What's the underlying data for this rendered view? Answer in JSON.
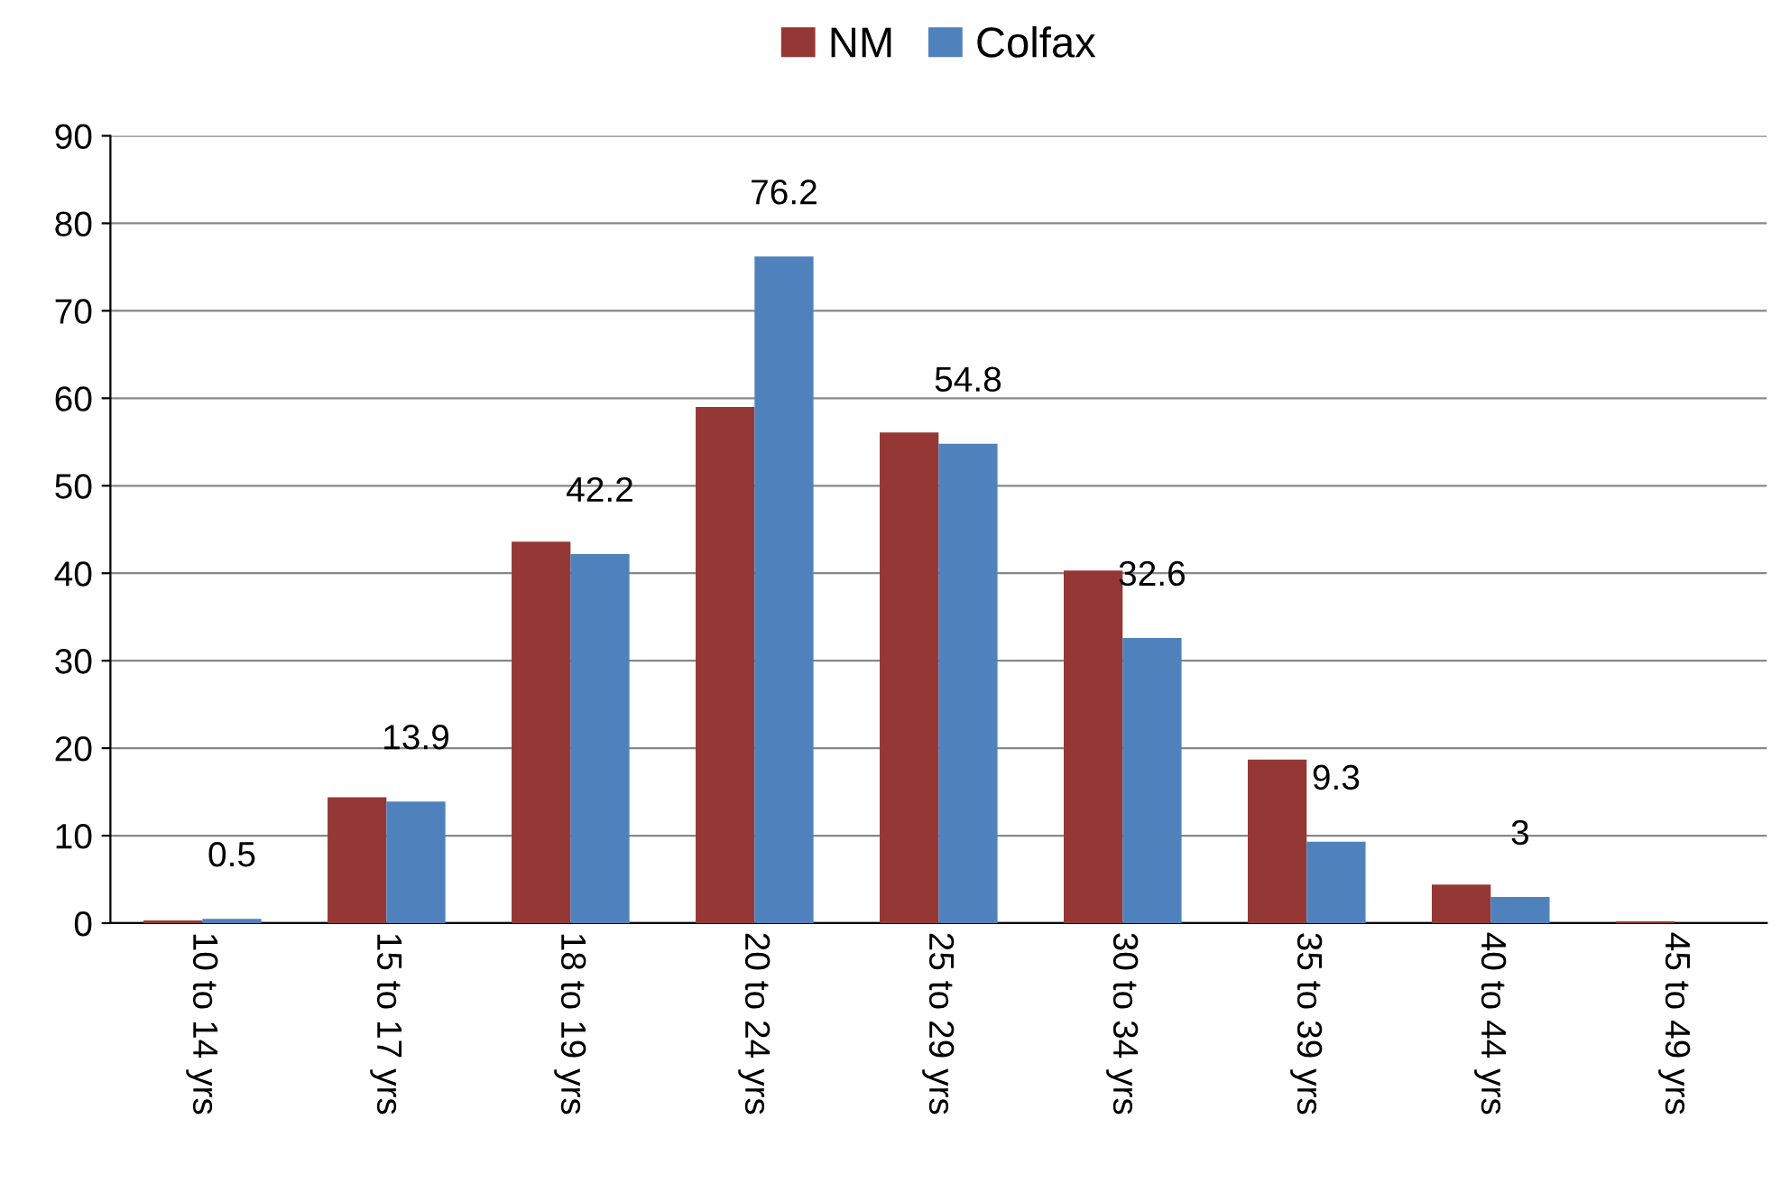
{
  "chart_data": {
    "type": "bar",
    "categories": [
      "10 to 14 yrs",
      "15 to 17 yrs",
      "18 to 19 yrs",
      "20 to 24 yrs",
      "25 to 29 yrs",
      "30 to 34 yrs",
      "35 to 39 yrs",
      "40 to 44 yrs",
      "45 to 49 yrs"
    ],
    "series": [
      {
        "name": "NM",
        "color": "#953735",
        "values": [
          0.3,
          14.4,
          43.6,
          59.0,
          56.1,
          40.3,
          18.7,
          4.4,
          0.2
        ]
      },
      {
        "name": "Colfax",
        "color": "#4f81bd",
        "values": [
          0.5,
          13.9,
          42.2,
          76.2,
          54.8,
          32.6,
          9.3,
          3,
          0
        ],
        "value_labels": [
          "0.5",
          "13.9",
          "42.2",
          "76.2",
          "54.8",
          "32.6",
          "9.3",
          "3",
          null
        ]
      }
    ],
    "ylim": [
      0,
      90
    ],
    "yticks": [
      0,
      10,
      20,
      30,
      40,
      50,
      60,
      70,
      80,
      90
    ],
    "grid": "y",
    "legend": "top"
  }
}
